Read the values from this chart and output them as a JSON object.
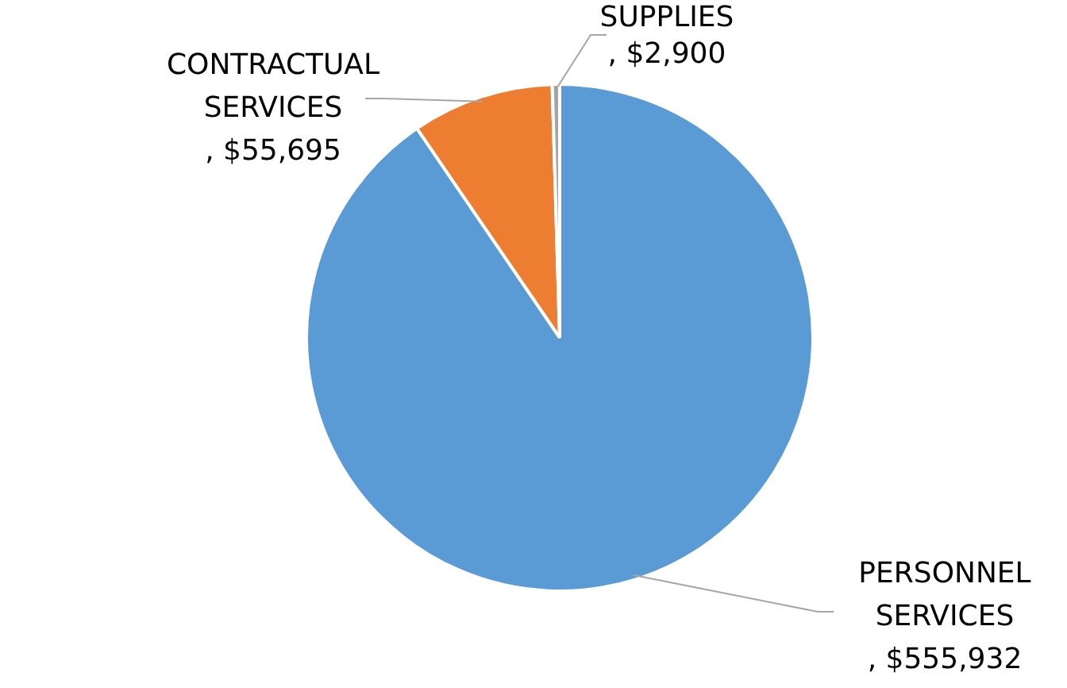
{
  "chart_data": {
    "type": "pie",
    "categories": [
      "PERSONNEL SERVICES",
      "CONTRACTUAL SERVICES",
      "SUPPLIES"
    ],
    "values": [
      555932,
      55695,
      2900
    ],
    "colors": [
      "#5b9bd5",
      "#ed7d31",
      "#a5a5a5"
    ],
    "value_labels": [
      ", $555,932",
      ", $55,695",
      ", $2,900"
    ],
    "legend": false
  }
}
